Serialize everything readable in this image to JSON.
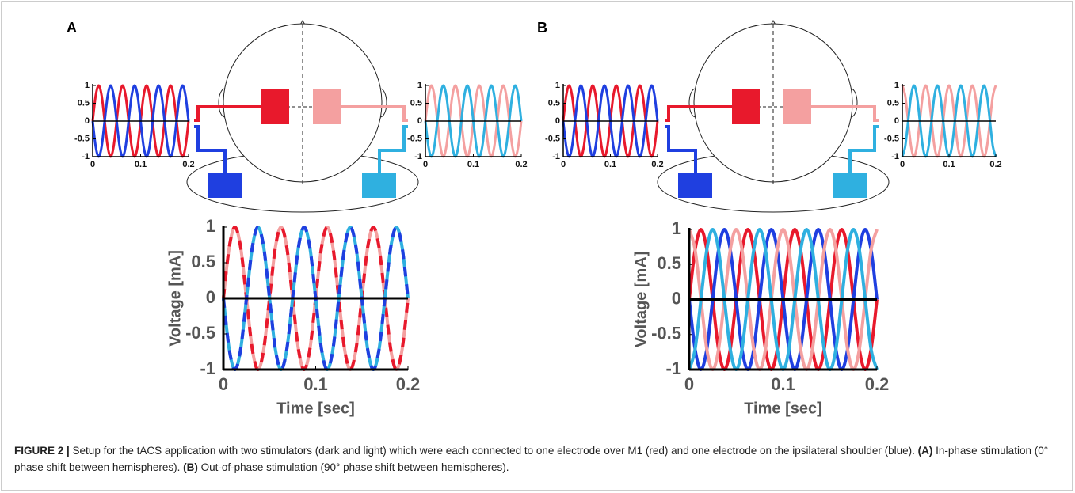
{
  "panels": [
    "A",
    "B"
  ],
  "chart_data": [
    {
      "type": "line",
      "x": [
        0,
        0.00625,
        0.0125,
        0.01875,
        0.025,
        0.03125,
        0.0375,
        0.04375,
        0.05,
        0.05625,
        0.0625,
        0.06875,
        0.075,
        0.08125,
        0.0875,
        0.09375,
        0.1,
        0.10625,
        0.1125,
        0.11875,
        0.125,
        0.13125,
        0.1375,
        0.14375,
        0.15,
        0.15625,
        0.1625,
        0.16875,
        0.175,
        0.18125,
        0.1875,
        0.19375,
        0.2
      ],
      "xlim": [
        0,
        0.2
      ],
      "ylim": [
        -1,
        1
      ],
      "xticks": [
        0,
        0.1,
        0.2
      ],
      "yticks": [
        -1,
        -0.5,
        0,
        0.5,
        1
      ],
      "series": [
        {
          "color": "#e8192c",
          "values": [
            0,
            0.71,
            1,
            0.71,
            0,
            -0.71,
            -1,
            -0.71,
            0,
            0.71,
            1,
            0.71,
            0,
            -0.71,
            -1,
            -0.71,
            0,
            0.71,
            1,
            0.71,
            0,
            -0.71,
            -1,
            -0.71,
            0,
            0.71,
            1,
            0.71,
            0,
            -0.71,
            -1,
            -0.71,
            0
          ]
        },
        {
          "color": "#1f3fe0",
          "values": [
            0,
            -0.71,
            -1,
            -0.71,
            0,
            0.71,
            1,
            0.71,
            0,
            -0.71,
            -1,
            -0.71,
            0,
            0.71,
            1,
            0.71,
            0,
            -0.71,
            -1,
            -0.71,
            0,
            0.71,
            1,
            0.71,
            0,
            -0.71,
            -1,
            -0.71,
            0,
            0.71,
            1,
            0.71,
            0
          ]
        }
      ]
    },
    {
      "type": "line",
      "x": [
        0,
        0.00625,
        0.0125,
        0.01875,
        0.025,
        0.03125,
        0.0375,
        0.04375,
        0.05,
        0.05625,
        0.0625,
        0.06875,
        0.075,
        0.08125,
        0.0875,
        0.09375,
        0.1,
        0.10625,
        0.1125,
        0.11875,
        0.125,
        0.13125,
        0.1375,
        0.14375,
        0.15,
        0.15625,
        0.1625,
        0.16875,
        0.175,
        0.18125,
        0.1875,
        0.19375,
        0.2
      ],
      "xlim": [
        0,
        0.2
      ],
      "ylim": [
        -1,
        1
      ],
      "xticks": [
        0,
        0.1,
        0.2
      ],
      "yticks": [
        -1,
        -0.5,
        0,
        0.5,
        1
      ],
      "series": [
        {
          "color": "#f4a0a0",
          "values": [
            0,
            0.71,
            1,
            0.71,
            0,
            -0.71,
            -1,
            -0.71,
            0,
            0.71,
            1,
            0.71,
            0,
            -0.71,
            -1,
            -0.71,
            0,
            0.71,
            1,
            0.71,
            0,
            -0.71,
            -1,
            -0.71,
            0,
            0.71,
            1,
            0.71,
            0,
            -0.71,
            -1,
            -0.71,
            0
          ]
        },
        {
          "color": "#2fb0e0",
          "values": [
            0,
            -0.71,
            -1,
            -0.71,
            0,
            0.71,
            1,
            0.71,
            0,
            -0.71,
            -1,
            -0.71,
            0,
            0.71,
            1,
            0.71,
            0,
            -0.71,
            -1,
            -0.71,
            0,
            0.71,
            1,
            0.71,
            0,
            -0.71,
            -1,
            -0.71,
            0,
            0.71,
            1,
            0.71,
            0
          ]
        }
      ]
    },
    {
      "type": "line",
      "xlabel": "Time [sec]",
      "ylabel": "Voltage [mA]",
      "x": [
        0,
        0.00625,
        0.0125,
        0.01875,
        0.025,
        0.03125,
        0.0375,
        0.04375,
        0.05,
        0.05625,
        0.0625,
        0.06875,
        0.075,
        0.08125,
        0.0875,
        0.09375,
        0.1,
        0.10625,
        0.1125,
        0.11875,
        0.125,
        0.13125,
        0.1375,
        0.14375,
        0.15,
        0.15625,
        0.1625,
        0.16875,
        0.175,
        0.18125,
        0.1875,
        0.19375,
        0.2
      ],
      "xlim": [
        0,
        0.2
      ],
      "ylim": [
        -1,
        1
      ],
      "xticks": [
        0,
        0.1,
        0.2
      ],
      "yticks": [
        -1,
        -0.5,
        0,
        0.5,
        1
      ],
      "series": [
        {
          "color": "#f4a0a0",
          "values": [
            0,
            0.71,
            1,
            0.71,
            0,
            -0.71,
            -1,
            -0.71,
            0,
            0.71,
            1,
            0.71,
            0,
            -0.71,
            -1,
            -0.71,
            0,
            0.71,
            1,
            0.71,
            0,
            -0.71,
            -1,
            -0.71,
            0,
            0.71,
            1,
            0.71,
            0,
            -0.71,
            -1,
            -0.71,
            0
          ]
        },
        {
          "color": "#e8192c",
          "dashed": true,
          "values": [
            0,
            0.71,
            1,
            0.71,
            0,
            -0.71,
            -1,
            -0.71,
            0,
            0.71,
            1,
            0.71,
            0,
            -0.71,
            -1,
            -0.71,
            0,
            0.71,
            1,
            0.71,
            0,
            -0.71,
            -1,
            -0.71,
            0,
            0.71,
            1,
            0.71,
            0,
            -0.71,
            -1,
            -0.71,
            0
          ]
        },
        {
          "color": "#2fb0e0",
          "values": [
            0,
            -0.71,
            -1,
            -0.71,
            0,
            0.71,
            1,
            0.71,
            0,
            -0.71,
            -1,
            -0.71,
            0,
            0.71,
            1,
            0.71,
            0,
            -0.71,
            -1,
            -0.71,
            0,
            0.71,
            1,
            0.71,
            0,
            -0.71,
            -1,
            -0.71,
            0,
            0.71,
            1,
            0.71,
            0
          ]
        },
        {
          "color": "#1f3fe0",
          "dashed": true,
          "values": [
            0,
            -0.71,
            -1,
            -0.71,
            0,
            0.71,
            1,
            0.71,
            0,
            -0.71,
            -1,
            -0.71,
            0,
            0.71,
            1,
            0.71,
            0,
            -0.71,
            -1,
            -0.71,
            0,
            0.71,
            1,
            0.71,
            0,
            -0.71,
            -1,
            -0.71,
            0,
            0.71,
            1,
            0.71,
            0
          ]
        }
      ]
    },
    {
      "type": "line",
      "x": [
        0,
        0.00625,
        0.0125,
        0.01875,
        0.025,
        0.03125,
        0.0375,
        0.04375,
        0.05,
        0.05625,
        0.0625,
        0.06875,
        0.075,
        0.08125,
        0.0875,
        0.09375,
        0.1,
        0.10625,
        0.1125,
        0.11875,
        0.125,
        0.13125,
        0.1375,
        0.14375,
        0.15,
        0.15625,
        0.1625,
        0.16875,
        0.175,
        0.18125,
        0.1875,
        0.19375,
        0.2
      ],
      "xlim": [
        0,
        0.2
      ],
      "ylim": [
        -1,
        1
      ],
      "xticks": [
        0,
        0.1,
        0.2
      ],
      "yticks": [
        -1,
        -0.5,
        0,
        0.5,
        1
      ],
      "series": [
        {
          "color": "#e8192c",
          "values": [
            0,
            0.71,
            1,
            0.71,
            0,
            -0.71,
            -1,
            -0.71,
            0,
            0.71,
            1,
            0.71,
            0,
            -0.71,
            -1,
            -0.71,
            0,
            0.71,
            1,
            0.71,
            0,
            -0.71,
            -1,
            -0.71,
            0,
            0.71,
            1,
            0.71,
            0,
            -0.71,
            -1,
            -0.71,
            0
          ]
        },
        {
          "color": "#1f3fe0",
          "values": [
            0,
            -0.71,
            -1,
            -0.71,
            0,
            0.71,
            1,
            0.71,
            0,
            -0.71,
            -1,
            -0.71,
            0,
            0.71,
            1,
            0.71,
            0,
            -0.71,
            -1,
            -0.71,
            0,
            0.71,
            1,
            0.71,
            0,
            -0.71,
            -1,
            -0.71,
            0,
            0.71,
            1,
            0.71,
            0
          ]
        }
      ]
    },
    {
      "type": "line",
      "x": [
        0,
        0.00625,
        0.0125,
        0.01875,
        0.025,
        0.03125,
        0.0375,
        0.04375,
        0.05,
        0.05625,
        0.0625,
        0.06875,
        0.075,
        0.08125,
        0.0875,
        0.09375,
        0.1,
        0.10625,
        0.1125,
        0.11875,
        0.125,
        0.13125,
        0.1375,
        0.14375,
        0.15,
        0.15625,
        0.1625,
        0.16875,
        0.175,
        0.18125,
        0.1875,
        0.19375,
        0.2
      ],
      "xlim": [
        0,
        0.2
      ],
      "ylim": [
        -1,
        1
      ],
      "xticks": [
        0,
        0.1,
        0.2
      ],
      "yticks": [
        -1,
        -0.5,
        0,
        0.5,
        1
      ],
      "series": [
        {
          "color": "#f4a0a0",
          "values": [
            1,
            0.71,
            0,
            -0.71,
            -1,
            -0.71,
            0,
            0.71,
            1,
            0.71,
            0,
            -0.71,
            -1,
            -0.71,
            0,
            0.71,
            1,
            0.71,
            0,
            -0.71,
            -1,
            -0.71,
            0,
            0.71,
            1,
            0.71,
            0,
            -0.71,
            -1,
            -0.71,
            0,
            0.71,
            1
          ]
        },
        {
          "color": "#2fb0e0",
          "values": [
            -1,
            -0.71,
            0,
            0.71,
            1,
            0.71,
            0,
            -0.71,
            -1,
            -0.71,
            0,
            0.71,
            1,
            0.71,
            0,
            -0.71,
            -1,
            -0.71,
            0,
            0.71,
            1,
            0.71,
            0,
            -0.71,
            -1,
            -0.71,
            0,
            0.71,
            1,
            0.71,
            0,
            -0.71,
            -1
          ]
        }
      ]
    },
    {
      "type": "line",
      "xlabel": "Time [sec]",
      "ylabel": "Voltage [mA]",
      "x": [
        0,
        0.00625,
        0.0125,
        0.01875,
        0.025,
        0.03125,
        0.0375,
        0.04375,
        0.05,
        0.05625,
        0.0625,
        0.06875,
        0.075,
        0.08125,
        0.0875,
        0.09375,
        0.1,
        0.10625,
        0.1125,
        0.11875,
        0.125,
        0.13125,
        0.1375,
        0.14375,
        0.15,
        0.15625,
        0.1625,
        0.16875,
        0.175,
        0.18125,
        0.1875,
        0.19375,
        0.2
      ],
      "xlim": [
        0,
        0.2
      ],
      "ylim": [
        -1,
        1
      ],
      "xticks": [
        0,
        0.1,
        0.2
      ],
      "yticks": [
        -1,
        -0.5,
        0,
        0.5,
        1
      ],
      "series": [
        {
          "color": "#e8192c",
          "values": [
            0,
            0.71,
            1,
            0.71,
            0,
            -0.71,
            -1,
            -0.71,
            0,
            0.71,
            1,
            0.71,
            0,
            -0.71,
            -1,
            -0.71,
            0,
            0.71,
            1,
            0.71,
            0,
            -0.71,
            -1,
            -0.71,
            0,
            0.71,
            1,
            0.71,
            0,
            -0.71,
            -1,
            -0.71,
            0
          ]
        },
        {
          "color": "#1f3fe0",
          "values": [
            0,
            -0.71,
            -1,
            -0.71,
            0,
            0.71,
            1,
            0.71,
            0,
            -0.71,
            -1,
            -0.71,
            0,
            0.71,
            1,
            0.71,
            0,
            -0.71,
            -1,
            -0.71,
            0,
            0.71,
            1,
            0.71,
            0,
            -0.71,
            -1,
            -0.71,
            0,
            0.71,
            1,
            0.71,
            0
          ]
        },
        {
          "color": "#f4a0a0",
          "values": [
            1,
            0.71,
            0,
            -0.71,
            -1,
            -0.71,
            0,
            0.71,
            1,
            0.71,
            0,
            -0.71,
            -1,
            -0.71,
            0,
            0.71,
            1,
            0.71,
            0,
            -0.71,
            -1,
            -0.71,
            0,
            0.71,
            1,
            0.71,
            0,
            -0.71,
            -1,
            -0.71,
            0,
            0.71,
            1
          ]
        },
        {
          "color": "#2fb0e0",
          "values": [
            -1,
            -0.71,
            0,
            0.71,
            1,
            0.71,
            0,
            -0.71,
            -1,
            -0.71,
            0,
            0.71,
            1,
            0.71,
            0,
            -0.71,
            -1,
            -0.71,
            0,
            0.71,
            1,
            0.71,
            0,
            -0.71,
            -1,
            -0.71,
            0,
            0.71,
            1,
            0.71,
            0,
            -0.71,
            -1
          ]
        }
      ]
    }
  ],
  "caption": {
    "label": "FIGURE 2 |",
    "text": " Setup for the tACS application with two stimulators (dark and light) which were each connected to one electrode over M1 (red) and one electrode on the ipsilateral shoulder (blue). ",
    "a_label": "(A)",
    "a_text": " In-phase stimulation (0° phase shift between hemispheres). ",
    "b_label": "(B)",
    "b_text": " Out-of-phase stimulation (90° phase shift between hemispheres)."
  }
}
